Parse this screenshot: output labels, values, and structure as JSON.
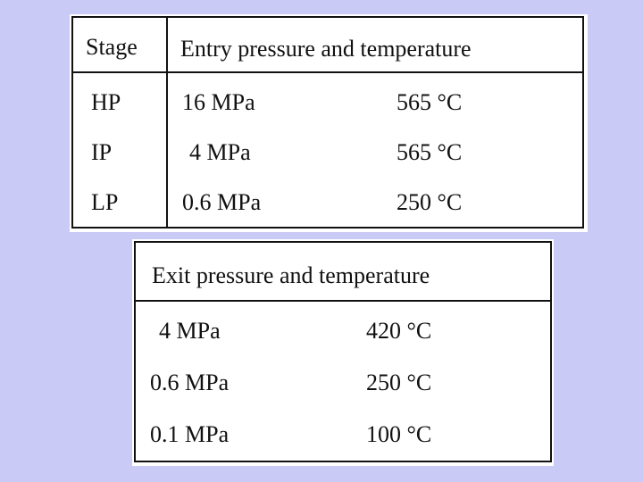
{
  "entry_table": {
    "header": [
      "Stage",
      "Entry pressure and temperature"
    ],
    "rows": [
      [
        "HP",
        "16 MPa",
        "565 °C"
      ],
      [
        "IP",
        "4 MPa",
        "565 °C"
      ],
      [
        "LP",
        "0.6 MPa",
        "250 °C"
      ]
    ]
  },
  "exit_table": {
    "header": "Exit pressure and temperature",
    "rows": [
      [
        "4 MPa",
        "420 °C"
      ],
      [
        "0.6 MPa",
        "250 °C"
      ],
      [
        "0.1 MPa",
        "100 °C"
      ]
    ]
  }
}
